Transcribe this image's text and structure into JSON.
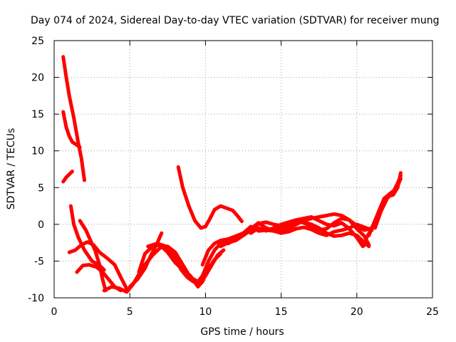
{
  "chart_data": {
    "type": "line",
    "title": "Day 074 of 2024, Sidereal Day-to-day VTEC variation (SDTVAR) for receiver mung",
    "xlabel": "GPS time / hours",
    "ylabel": "SDTVAR / TECUs",
    "xlim": [
      0,
      25
    ],
    "ylim": [
      -10,
      25
    ],
    "xticks": [
      "0",
      "5",
      "10",
      "15",
      "20",
      "25"
    ],
    "yticks": [
      "-10",
      "-5",
      "0",
      "5",
      "10",
      "15",
      "20",
      "25"
    ],
    "grid": true,
    "color": "#ff0000",
    "series": [
      {
        "points": [
          [
            0.6,
            22.8
          ],
          [
            0.8,
            20
          ],
          [
            1.0,
            17.5
          ],
          [
            1.3,
            14.5
          ],
          [
            1.6,
            11
          ],
          [
            1.8,
            9
          ],
          [
            2.0,
            6
          ]
        ]
      },
      {
        "points": [
          [
            0.6,
            15.3
          ],
          [
            0.8,
            13.2
          ],
          [
            1.0,
            12
          ],
          [
            1.2,
            11.2
          ],
          [
            1.5,
            10.8
          ],
          [
            1.7,
            10.5
          ]
        ]
      },
      {
        "points": [
          [
            0.6,
            5.8
          ],
          [
            0.8,
            6.4
          ],
          [
            1.0,
            6.8
          ],
          [
            1.2,
            7.2
          ]
        ]
      },
      {
        "points": [
          [
            1.1,
            2.5
          ],
          [
            1.3,
            0
          ],
          [
            1.6,
            -1.8
          ],
          [
            2.0,
            -3.5
          ],
          [
            2.5,
            -5
          ],
          [
            3.0,
            -5.6
          ],
          [
            3.3,
            -6.2
          ]
        ]
      },
      {
        "points": [
          [
            1.0,
            -3.8
          ],
          [
            1.4,
            -3.5
          ],
          [
            1.8,
            -2.8
          ],
          [
            2.2,
            -2.4
          ],
          [
            2.6,
            -2.8
          ],
          [
            3.0,
            -3.8
          ],
          [
            3.5,
            -4.6
          ],
          [
            4.0,
            -5.5
          ],
          [
            4.4,
            -7.2
          ],
          [
            4.8,
            -8.8
          ]
        ]
      },
      {
        "points": [
          [
            1.5,
            -6.5
          ],
          [
            1.9,
            -5.6
          ],
          [
            2.3,
            -5.5
          ],
          [
            2.8,
            -5.8
          ],
          [
            3.2,
            -6.5
          ],
          [
            3.6,
            -7.5
          ],
          [
            4.0,
            -8.5
          ],
          [
            4.4,
            -9.0
          ]
        ]
      },
      {
        "points": [
          [
            1.7,
            0.5
          ],
          [
            2.1,
            -0.8
          ],
          [
            2.4,
            -2.2
          ],
          [
            2.7,
            -3.5
          ],
          [
            3.0,
            -5.5
          ],
          [
            3.2,
            -7.5
          ],
          [
            3.4,
            -9.0
          ]
        ]
      },
      {
        "points": [
          [
            3.3,
            -9.0
          ],
          [
            3.8,
            -8.5
          ],
          [
            4.3,
            -8.7
          ],
          [
            4.8,
            -9.2
          ],
          [
            5.2,
            -8.2
          ],
          [
            5.6,
            -6.8
          ],
          [
            6.0,
            -5.5
          ],
          [
            6.5,
            -4.2
          ],
          [
            7.0,
            -3.2
          ],
          [
            7.5,
            -3.0
          ],
          [
            8.0,
            -3.8
          ],
          [
            8.5,
            -5.5
          ],
          [
            9.0,
            -7.2
          ],
          [
            9.5,
            -7.8
          ],
          [
            9.8,
            -7.0
          ],
          [
            10.2,
            -5.0
          ],
          [
            10.6,
            -3.5
          ],
          [
            11.0,
            -2.6
          ],
          [
            11.5,
            -2.3
          ]
        ]
      },
      {
        "points": [
          [
            5.0,
            -8.5
          ],
          [
            5.5,
            -7.5
          ],
          [
            6.0,
            -6.0
          ],
          [
            6.4,
            -4.2
          ],
          [
            6.8,
            -2.6
          ],
          [
            7.1,
            -1.2
          ]
        ]
      },
      {
        "points": [
          [
            5.6,
            -6.5
          ],
          [
            6.0,
            -4.0
          ],
          [
            6.5,
            -3.0
          ],
          [
            7.0,
            -2.8
          ],
          [
            7.5,
            -3.8
          ],
          [
            8.0,
            -5.2
          ],
          [
            8.5,
            -6.2
          ],
          [
            9.0,
            -7.0
          ],
          [
            9.5,
            -8.5
          ],
          [
            9.8,
            -7.8
          ],
          [
            10.2,
            -6.0
          ],
          [
            10.6,
            -4.8
          ],
          [
            11.0,
            -4.0
          ]
        ]
      },
      {
        "points": [
          [
            6.2,
            -3.0
          ],
          [
            6.8,
            -2.6
          ],
          [
            7.4,
            -3.0
          ],
          [
            8.0,
            -4.6
          ],
          [
            8.4,
            -6.2
          ],
          [
            8.8,
            -7.2
          ],
          [
            9.2,
            -7.8
          ],
          [
            9.6,
            -8.0
          ],
          [
            10.0,
            -7.0
          ],
          [
            10.4,
            -5.6
          ],
          [
            10.8,
            -4.2
          ],
          [
            11.2,
            -3.5
          ]
        ]
      },
      {
        "points": [
          [
            8.2,
            7.8
          ],
          [
            8.5,
            5.0
          ],
          [
            8.9,
            2.5
          ],
          [
            9.3,
            0.5
          ],
          [
            9.7,
            -0.5
          ],
          [
            10.0,
            -0.3
          ],
          [
            10.3,
            0.8
          ],
          [
            10.6,
            2.0
          ],
          [
            11.0,
            2.5
          ],
          [
            11.4,
            2.2
          ],
          [
            11.8,
            1.9
          ],
          [
            12.1,
            1.2
          ],
          [
            12.4,
            0.4
          ]
        ]
      },
      {
        "points": [
          [
            9.8,
            -5.5
          ],
          [
            10.2,
            -3.5
          ],
          [
            10.6,
            -2.6
          ],
          [
            11.0,
            -2.2
          ],
          [
            11.5,
            -2.0
          ],
          [
            12.0,
            -1.6
          ],
          [
            12.5,
            -1.2
          ],
          [
            13.0,
            -1.0
          ],
          [
            13.5,
            -0.6
          ],
          [
            14.0,
            -0.8
          ],
          [
            14.5,
            -0.8
          ],
          [
            15.0,
            -1.0
          ],
          [
            15.5,
            -0.6
          ],
          [
            16.0,
            0.0
          ],
          [
            16.5,
            0.5
          ],
          [
            17.0,
            0.8
          ],
          [
            17.5,
            1.0
          ],
          [
            18.0,
            1.2
          ],
          [
            18.5,
            1.4
          ],
          [
            19.0,
            1.2
          ],
          [
            19.5,
            0.6
          ],
          [
            20.0,
            -0.2
          ],
          [
            20.5,
            -0.8
          ],
          [
            21.0,
            -0.5
          ]
        ]
      },
      {
        "points": [
          [
            11.0,
            -3.0
          ],
          [
            11.5,
            -2.5
          ],
          [
            12.0,
            -2.2
          ],
          [
            12.5,
            -1.5
          ],
          [
            13.0,
            -0.6
          ],
          [
            13.5,
            0.2
          ],
          [
            14.0,
            -0.5
          ],
          [
            14.5,
            -0.8
          ],
          [
            15.0,
            -0.5
          ],
          [
            15.5,
            -0.2
          ],
          [
            16.0,
            0.2
          ],
          [
            16.5,
            0.3
          ],
          [
            17.0,
            0.0
          ],
          [
            17.5,
            -0.5
          ],
          [
            18.0,
            -1.2
          ],
          [
            18.5,
            -1.6
          ],
          [
            19.0,
            -1.5
          ],
          [
            19.5,
            -1.2
          ],
          [
            20.0,
            -1.5
          ],
          [
            20.5,
            -2.5
          ],
          [
            20.8,
            -3.0
          ]
        ]
      },
      {
        "points": [
          [
            11.5,
            -2.6
          ],
          [
            12.0,
            -2.0
          ],
          [
            12.5,
            -1.2
          ],
          [
            13.0,
            -0.3
          ],
          [
            13.5,
            -0.9
          ],
          [
            14.0,
            -0.8
          ],
          [
            14.5,
            -0.9
          ],
          [
            15.0,
            -1.2
          ],
          [
            15.5,
            -1.0
          ],
          [
            16.0,
            -0.6
          ],
          [
            16.5,
            -0.4
          ],
          [
            17.0,
            -0.7
          ],
          [
            17.5,
            -1.2
          ],
          [
            18.0,
            -1.5
          ],
          [
            18.5,
            -1.0
          ],
          [
            19.0,
            -0.8
          ],
          [
            19.5,
            -0.5
          ],
          [
            20.0,
            0.0
          ],
          [
            20.5,
            -0.4
          ],
          [
            21.0,
            -0.8
          ]
        ]
      },
      {
        "points": [
          [
            12.5,
            -1.5
          ],
          [
            13.0,
            -0.8
          ],
          [
            13.5,
            0.1
          ],
          [
            14.0,
            0.3
          ],
          [
            14.5,
            0.0
          ],
          [
            15.0,
            -0.2
          ],
          [
            15.5,
            0.2
          ],
          [
            16.0,
            0.5
          ],
          [
            16.5,
            0.2
          ],
          [
            17.0,
            -0.3
          ],
          [
            17.5,
            -0.8
          ],
          [
            18.0,
            -0.6
          ],
          [
            18.5,
            0.2
          ],
          [
            19.0,
            0.8
          ],
          [
            19.5,
            0.6
          ],
          [
            20.0,
            -0.6
          ],
          [
            20.5,
            -1.6
          ],
          [
            20.8,
            -2.8
          ]
        ]
      },
      {
        "points": [
          [
            13.0,
            -1.2
          ],
          [
            13.5,
            -0.5
          ],
          [
            14.0,
            -0.9
          ],
          [
            14.5,
            -0.5
          ],
          [
            15.0,
            0.0
          ],
          [
            15.5,
            0.3
          ],
          [
            16.0,
            0.6
          ],
          [
            16.5,
            0.8
          ],
          [
            17.0,
            1.0
          ],
          [
            17.5,
            0.5
          ],
          [
            18.0,
            0.0
          ],
          [
            18.5,
            -0.2
          ],
          [
            19.0,
            0.2
          ],
          [
            19.5,
            -0.6
          ],
          [
            20.0,
            -1.8
          ],
          [
            20.4,
            -3.0
          ],
          [
            20.7,
            -2.5
          ]
        ]
      },
      {
        "points": [
          [
            20.6,
            -2.0
          ],
          [
            21.0,
            -0.5
          ],
          [
            21.4,
            1.5
          ],
          [
            21.8,
            3.5
          ],
          [
            22.2,
            4.2
          ],
          [
            22.6,
            4.8
          ],
          [
            22.9,
            6.2
          ]
        ]
      },
      {
        "points": [
          [
            20.8,
            -1.5
          ],
          [
            21.2,
            0.5
          ],
          [
            21.6,
            2.5
          ],
          [
            22.0,
            3.8
          ],
          [
            22.4,
            4.0
          ],
          [
            22.7,
            5.0
          ],
          [
            22.9,
            7.0
          ]
        ]
      },
      {
        "points": [
          [
            21.2,
            -0.5
          ],
          [
            21.6,
            1.8
          ],
          [
            22.0,
            3.5
          ],
          [
            22.4,
            4.4
          ],
          [
            22.7,
            5.6
          ],
          [
            22.9,
            6.6
          ]
        ]
      }
    ]
  }
}
